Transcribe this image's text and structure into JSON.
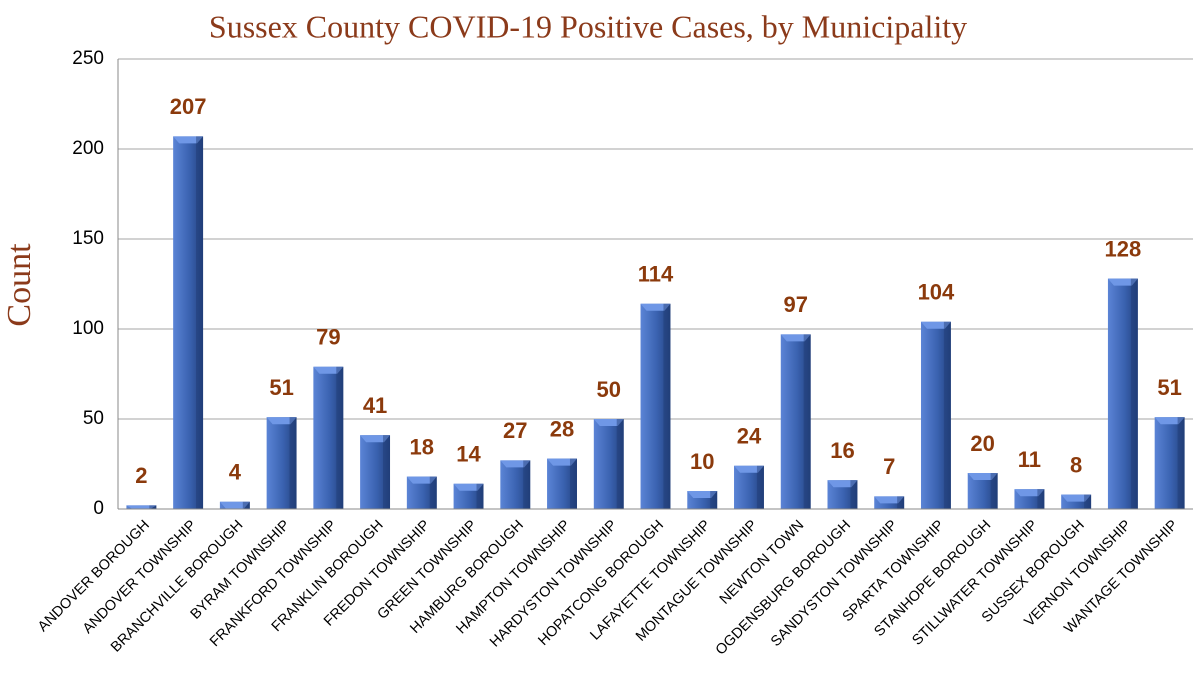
{
  "chart_data": {
    "type": "bar",
    "title": "Sussex County COVID-19 Positive Cases, by Municipality",
    "y_label": "Count",
    "categories": [
      "ANDOVER BOROUGH",
      "ANDOVER TOWNSHIP",
      "BRANCHVILLE BOROUGH",
      "BYRAM TOWNSHIP",
      "FRANKFORD TOWNSHIP",
      "FRANKLIN BOROUGH",
      "FREDON TOWNSHIP",
      "GREEN TOWNSHIP",
      "HAMBURG BOROUGH",
      "HAMPTON TOWNSHIP",
      "HARDYSTON TOWNSHIP",
      "HOPATCONG BOROUGH",
      "LAFAYETTE TOWNSHIP",
      "MONTAGUE TOWNSHIP",
      "NEWTON TOWN",
      "OGDENSBURG BOROUGH",
      "SANDYSTON TOWNSHIP",
      "SPARTA TOWNSHIP",
      "STANHOPE BOROUGH",
      "STILLWATER TOWNSHIP",
      "SUSSEX BOROUGH",
      "VERNON TOWNSHIP",
      "WANTAGE TOWNSHIP"
    ],
    "values": [
      2,
      207,
      4,
      51,
      79,
      41,
      18,
      14,
      27,
      28,
      50,
      114,
      10,
      24,
      97,
      16,
      7,
      104,
      20,
      11,
      8,
      128,
      51
    ],
    "color": "#3a62b0",
    "ylim": [
      0,
      250
    ],
    "yticks": [
      0,
      50,
      100,
      150,
      200,
      250
    ],
    "grid": true
  }
}
